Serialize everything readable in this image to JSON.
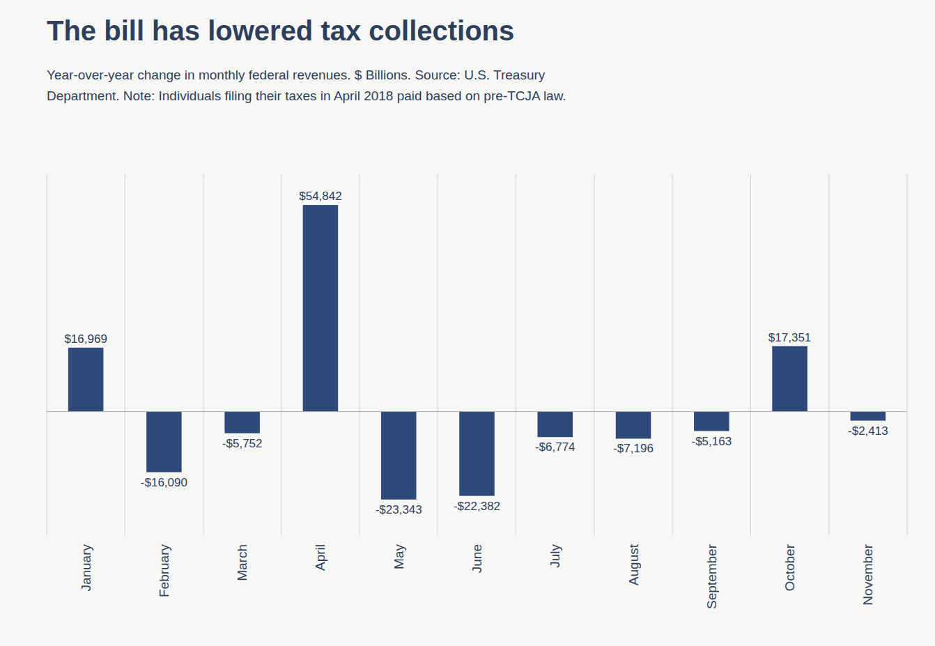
{
  "chart_data": {
    "type": "bar",
    "title": "The bill has lowered tax collections",
    "subtitle": "Year-over-year change in monthly federal revenues. $ Billions. Source: U.S. Treasury\nDepartment. Note: Individuals filing their taxes in April 2018 paid based on pre-TCJA law.",
    "categories": [
      "January",
      "February",
      "March",
      "April",
      "May",
      "June",
      "July",
      "August",
      "September",
      "October",
      "November"
    ],
    "values": [
      16969,
      -16090,
      -5752,
      54842,
      -23343,
      -22382,
      -6774,
      -7196,
      -5163,
      17351,
      -2413
    ],
    "value_labels": [
      "$16,969",
      "-$16,090",
      "-$5,752",
      "$54,842",
      "-$23,343",
      "-$22,382",
      "-$6,774",
      "-$7,196",
      "-$5,163",
      "$17,351",
      "-$2,413"
    ],
    "data_labels": true,
    "color": "#2e4a7a",
    "ylim": [
      -33000,
      63000
    ],
    "grid": true,
    "tick_labels": "x"
  }
}
